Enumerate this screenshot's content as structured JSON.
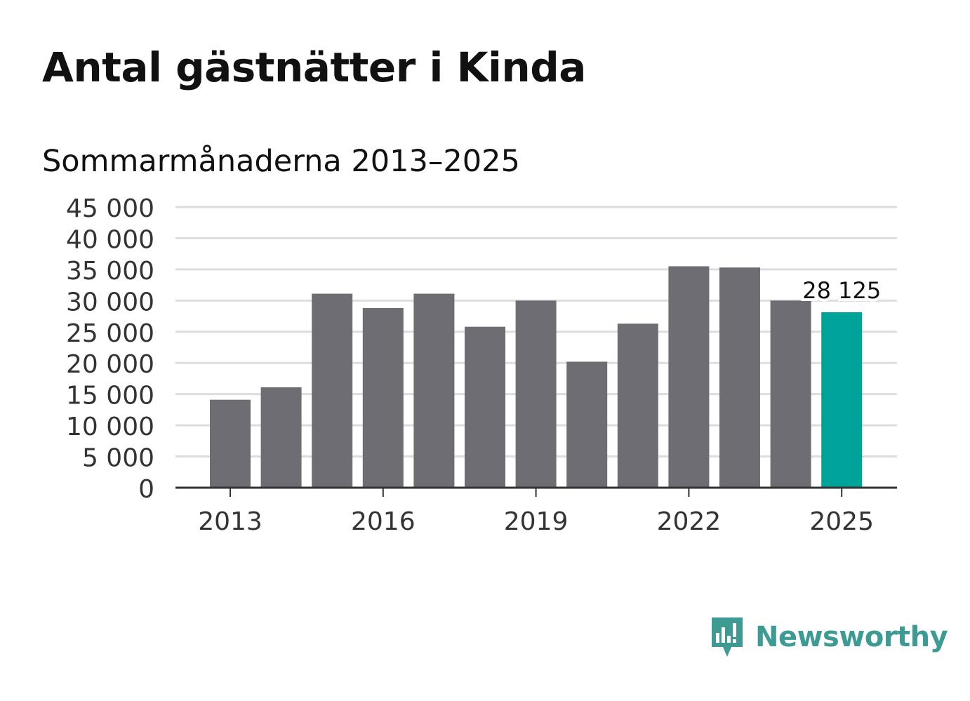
{
  "header": {
    "title": "Antal gästnätter i Kinda",
    "subtitle": "Sommarmånaderna 2013–2025"
  },
  "colors": {
    "bar": "#6e6d73",
    "highlight": "#00a398",
    "grid": "#dddddd",
    "axis": "#333333",
    "brand": "#3d9b94"
  },
  "brand": {
    "name": "Newsworthy",
    "icon": "newsworthy-logo-icon"
  },
  "chart_data": {
    "type": "bar",
    "title": "Antal gästnätter i Kinda",
    "subtitle": "Sommarmånaderna 2013–2025",
    "xlabel": "",
    "ylabel": "",
    "ylim": [
      0,
      45000
    ],
    "yticks": [
      0,
      5000,
      10000,
      15000,
      20000,
      25000,
      30000,
      35000,
      40000,
      45000
    ],
    "ytick_labels": [
      "0",
      "5 000",
      "10 000",
      "15 000",
      "20 000",
      "25 000",
      "30 000",
      "35 000",
      "40 000",
      "45 000"
    ],
    "categories": [
      "2013",
      "2014",
      "2015",
      "2016",
      "2017",
      "2018",
      "2019",
      "2020",
      "2021",
      "2022",
      "2023",
      "2024",
      "2025"
    ],
    "xtick_labels": [
      "2013",
      "2016",
      "2019",
      "2022",
      "2025"
    ],
    "values": [
      14100,
      16100,
      31100,
      28800,
      31100,
      25800,
      30000,
      20200,
      26300,
      35500,
      35300,
      30000,
      28125
    ],
    "highlight_index": 12,
    "annotation": {
      "category": "2025",
      "text": "28 125"
    },
    "grid": true,
    "legend": "none"
  }
}
